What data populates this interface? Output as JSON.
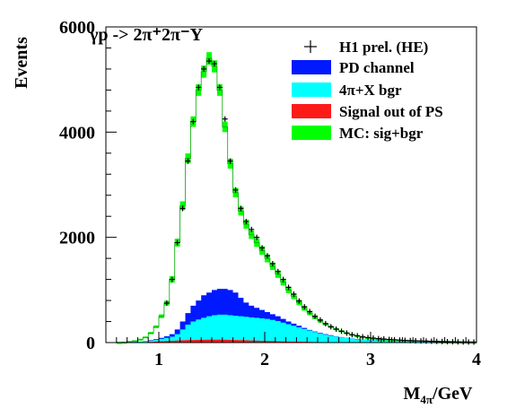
{
  "chart_data": {
    "type": "histogram",
    "title": "γp -> 2π⁺2π⁻Y",
    "xlabel": "M4π/GeV",
    "ylabel": "Events",
    "xlim": [
      0.5,
      4.0
    ],
    "ylim": [
      0,
      6000
    ],
    "x_ticks": [
      "1",
      "2",
      "3",
      "4"
    ],
    "y_ticks": [
      "0",
      "2000",
      "4000",
      "6000"
    ],
    "grid": false,
    "legend_position": "top-right",
    "bin_width": 0.05,
    "legend": [
      {
        "label": "H1 prel. (HE)",
        "color": "#000000",
        "style": "marker"
      },
      {
        "label": "PD channel",
        "color": "#0019ff",
        "style": "fill"
      },
      {
        "label": "4π+X bgr",
        "color": "#00ffff",
        "style": "fill"
      },
      {
        "label": "Signal out of PS",
        "color": "#ff1a1a",
        "style": "fill"
      },
      {
        "label": "MC: sig+bgr",
        "color": "#00ff00",
        "style": "fill"
      }
    ],
    "series": [
      {
        "name": "MC: sig+bgr",
        "color": "#00ff00",
        "centers": [
          0.525,
          0.575,
          0.625,
          0.675,
          0.725,
          0.775,
          0.825,
          0.875,
          0.925,
          0.975,
          1.025,
          1.075,
          1.125,
          1.175,
          1.225,
          1.275,
          1.325,
          1.375,
          1.425,
          1.475,
          1.525,
          1.575,
          1.625,
          1.675,
          1.725,
          1.775,
          1.825,
          1.875,
          1.925,
          1.975,
          2.025,
          2.075,
          2.125,
          2.175,
          2.225,
          2.275,
          2.325,
          2.375,
          2.425,
          2.475,
          2.525,
          2.575,
          2.625,
          2.675,
          2.725,
          2.775,
          2.825,
          2.875,
          2.925,
          2.975,
          3.025,
          3.075,
          3.125,
          3.175,
          3.225,
          3.275,
          3.325,
          3.375,
          3.425,
          3.475,
          3.525,
          3.575,
          3.625,
          3.675,
          3.725,
          3.775,
          3.825,
          3.875,
          3.925,
          3.975
        ],
        "values": [
          0,
          0,
          5,
          10,
          20,
          35,
          60,
          100,
          180,
          300,
          500,
          750,
          1200,
          1900,
          2600,
          3500,
          4200,
          4800,
          5150,
          5400,
          5250,
          4800,
          4100,
          3400,
          2850,
          2500,
          2250,
          2050,
          1900,
          1750,
          1600,
          1450,
          1300,
          1150,
          1000,
          880,
          760,
          650,
          560,
          480,
          410,
          350,
          300,
          255,
          215,
          180,
          150,
          125,
          105,
          90,
          80,
          70,
          62,
          55,
          50,
          45,
          40,
          36,
          33,
          30,
          27,
          24,
          21,
          19,
          17,
          15,
          13,
          11,
          10,
          9
        ],
        "band": [
          0,
          0,
          2,
          3,
          5,
          8,
          12,
          15,
          20,
          25,
          35,
          45,
          60,
          75,
          85,
          95,
          100,
          110,
          115,
          120,
          115,
          110,
          100,
          95,
          90,
          85,
          85,
          80,
          80,
          80,
          75,
          70,
          70,
          65,
          60,
          55,
          50,
          45,
          40,
          35,
          30,
          25,
          22,
          20,
          18,
          15,
          13,
          11,
          10,
          9,
          8,
          7,
          6,
          6,
          5,
          5,
          5,
          4,
          4,
          4,
          4,
          3,
          3,
          3,
          3,
          3,
          2,
          2,
          2,
          2
        ]
      },
      {
        "name": "PD channel",
        "color": "#0019ff",
        "centers": [
          0.525,
          0.575,
          0.625,
          0.675,
          0.725,
          0.775,
          0.825,
          0.875,
          0.925,
          0.975,
          1.025,
          1.075,
          1.125,
          1.175,
          1.225,
          1.275,
          1.325,
          1.375,
          1.425,
          1.475,
          1.525,
          1.575,
          1.625,
          1.675,
          1.725,
          1.775,
          1.825,
          1.875,
          1.925,
          1.975,
          2.025,
          2.075,
          2.125,
          2.175,
          2.225,
          2.275,
          2.325,
          2.375,
          2.425,
          2.475,
          2.525,
          2.575,
          2.625,
          2.675,
          2.725,
          2.775,
          2.825,
          2.875,
          2.925,
          2.975,
          3.025,
          3.075,
          3.125,
          3.175,
          3.225,
          3.275,
          3.325,
          3.375,
          3.425,
          3.475,
          3.525,
          3.575,
          3.625,
          3.675,
          3.725,
          3.775,
          3.825,
          3.875,
          3.925,
          3.975
        ],
        "values": [
          0,
          0,
          0,
          5,
          10,
          15,
          20,
          30,
          45,
          65,
          90,
          120,
          160,
          250,
          400,
          560,
          700,
          800,
          900,
          950,
          1000,
          1020,
          1020,
          1000,
          950,
          850,
          760,
          700,
          660,
          620,
          580,
          540,
          500,
          450,
          400,
          360,
          320,
          280,
          240,
          210,
          185,
          160,
          140,
          120,
          105,
          90,
          78,
          68,
          60,
          53,
          47,
          42,
          38,
          34,
          30,
          27,
          24,
          22,
          20,
          18,
          16,
          14,
          12,
          11,
          10,
          9,
          8,
          7,
          6,
          5
        ]
      },
      {
        "name": "4π+X bgr",
        "color": "#00ffff",
        "centers": [
          0.525,
          0.575,
          0.625,
          0.675,
          0.725,
          0.775,
          0.825,
          0.875,
          0.925,
          0.975,
          1.025,
          1.075,
          1.125,
          1.175,
          1.225,
          1.275,
          1.325,
          1.375,
          1.425,
          1.475,
          1.525,
          1.575,
          1.625,
          1.675,
          1.725,
          1.775,
          1.825,
          1.875,
          1.925,
          1.975,
          2.025,
          2.075,
          2.125,
          2.175,
          2.225,
          2.275,
          2.325,
          2.375,
          2.425,
          2.475,
          2.525,
          2.575,
          2.625,
          2.675,
          2.725,
          2.775,
          2.825,
          2.875,
          2.925,
          2.975,
          3.025,
          3.075,
          3.125,
          3.175,
          3.225,
          3.275,
          3.325,
          3.375,
          3.425,
          3.475,
          3.525,
          3.575,
          3.625,
          3.675,
          3.725,
          3.775,
          3.825,
          3.875,
          3.925,
          3.975
        ],
        "values": [
          0,
          0,
          0,
          5,
          8,
          12,
          18,
          25,
          35,
          50,
          70,
          90,
          110,
          160,
          250,
          340,
          400,
          440,
          470,
          500,
          520,
          530,
          530,
          520,
          510,
          500,
          490,
          480,
          470,
          460,
          450,
          430,
          410,
          380,
          350,
          320,
          290,
          260,
          230,
          200,
          175,
          150,
          130,
          115,
          100,
          85,
          75,
          65,
          57,
          50,
          44,
          39,
          35,
          31,
          28,
          25,
          22,
          20,
          18,
          16,
          14,
          13,
          11,
          10,
          9,
          8,
          7,
          6,
          5,
          5
        ]
      },
      {
        "name": "Signal out of PS",
        "color": "#ff1a1a",
        "centers": [
          0.525,
          0.575,
          0.625,
          0.675,
          0.725,
          0.775,
          0.825,
          0.875,
          0.925,
          0.975,
          1.025,
          1.075,
          1.125,
          1.175,
          1.225,
          1.275,
          1.325,
          1.375,
          1.425,
          1.475,
          1.525,
          1.575,
          1.625,
          1.675,
          1.725,
          1.775,
          1.825,
          1.875,
          1.925,
          1.975,
          2.025,
          2.075,
          2.125,
          2.175,
          2.225,
          2.275,
          2.325,
          2.375,
          2.425,
          2.475,
          2.525,
          2.575,
          2.625,
          2.675,
          2.725,
          2.775,
          2.825,
          2.875,
          2.925,
          2.975,
          3.025,
          3.075,
          3.125,
          3.175,
          3.225,
          3.275,
          3.325,
          3.375,
          3.425,
          3.475,
          3.525,
          3.575,
          3.625,
          3.675,
          3.725,
          3.775,
          3.825,
          3.875,
          3.925,
          3.975
        ],
        "values": [
          0,
          0,
          0,
          0,
          2,
          3,
          5,
          8,
          12,
          18,
          25,
          30,
          35,
          40,
          45,
          48,
          50,
          52,
          54,
          55,
          55,
          55,
          54,
          52,
          50,
          47,
          44,
          41,
          38,
          35,
          32,
          29,
          26,
          23,
          20,
          18,
          16,
          14,
          12,
          10,
          9,
          8,
          7,
          6,
          5,
          4,
          4,
          3,
          3,
          2,
          2,
          2,
          2,
          1,
          1,
          1,
          1,
          1,
          1,
          1,
          1,
          1,
          1,
          0,
          0,
          0,
          0,
          0,
          0,
          0
        ]
      },
      {
        "name": "H1 prel. (HE)",
        "color": "#000000",
        "x": [
          1.075,
          1.125,
          1.175,
          1.225,
          1.275,
          1.325,
          1.375,
          1.425,
          1.475,
          1.525,
          1.575,
          1.625,
          1.675,
          1.725,
          1.775,
          1.825,
          1.875,
          1.925,
          1.975,
          2.025,
          2.075,
          2.125,
          2.175,
          2.225,
          2.275,
          2.325,
          2.375,
          2.425,
          2.475,
          2.525,
          2.575,
          2.625,
          2.675,
          2.725,
          2.775,
          2.825,
          2.875,
          2.925,
          2.975,
          3.025,
          3.075,
          3.125,
          3.175,
          3.225,
          3.275,
          3.325,
          3.375,
          3.425,
          3.475,
          3.525,
          3.575,
          3.625,
          3.675,
          3.725,
          3.775,
          3.825,
          3.875,
          3.925,
          3.975
        ],
        "y": [
          750,
          1200,
          1900,
          2550,
          3450,
          4200,
          4850,
          5200,
          5350,
          5300,
          4850,
          4250,
          3450,
          2900,
          2550,
          2300,
          2150,
          2000,
          1800,
          1650,
          1500,
          1350,
          1200,
          1050,
          920,
          790,
          680,
          590,
          500,
          430,
          360,
          300,
          255,
          215,
          180,
          150,
          130,
          110,
          95,
          85,
          75,
          68,
          60,
          53,
          47,
          42,
          38,
          34,
          31,
          28,
          25,
          22,
          20,
          18,
          16,
          14,
          12,
          11,
          10
        ]
      }
    ]
  }
}
